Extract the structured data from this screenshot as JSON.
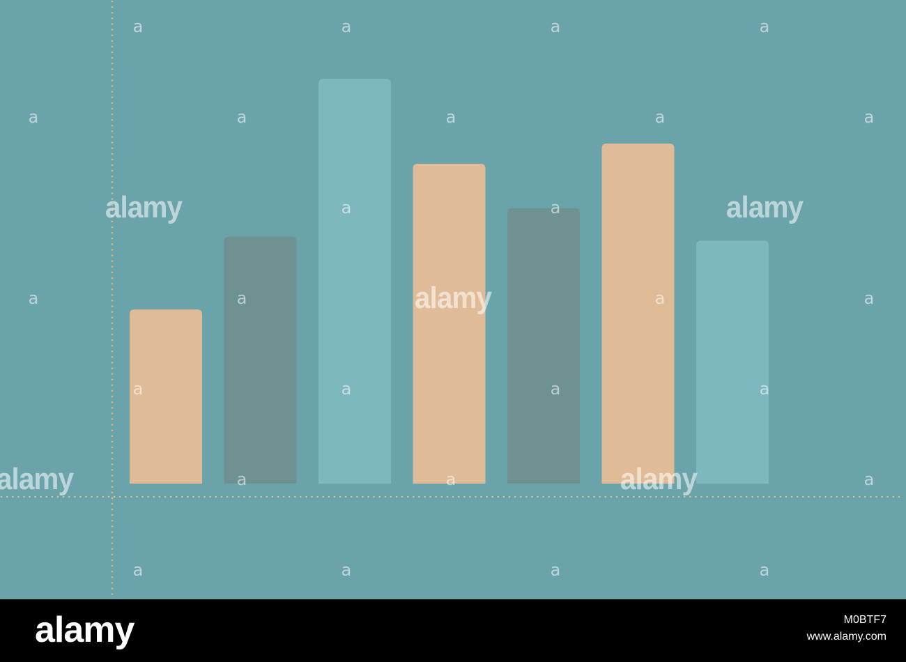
{
  "colors": {
    "background": "#6ba3ab",
    "grid_dots": "#e2bb8a",
    "footer_background": "#000000",
    "footer_text": "#ffffff",
    "watermark": "#ffffff"
  },
  "chart_data": {
    "type": "bar",
    "title": "",
    "xlabel": "",
    "ylabel": "",
    "categories": [
      "",
      "",
      "",
      "",
      "",
      "",
      ""
    ],
    "values": [
      43,
      61,
      100,
      79,
      68,
      84,
      60
    ],
    "ylim": [
      0,
      100
    ],
    "bar_colors": [
      "#dfbc97",
      "#6e9191",
      "#7cb8be",
      "#dfbc97",
      "#6e9191",
      "#dfbc97",
      "#7cb8be"
    ],
    "axes": "dotted",
    "grid": false,
    "legend": "none"
  },
  "watermark": {
    "small_mark": "a",
    "large_mark": "alamy"
  },
  "footer": {
    "logo": "alamy",
    "image_id": "M0BTF7",
    "url": "www.alamy.com"
  }
}
